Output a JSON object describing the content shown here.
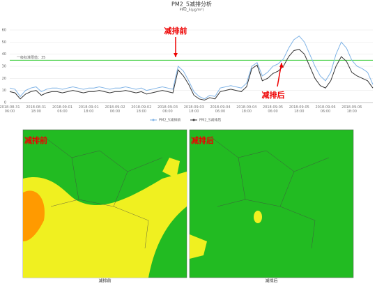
{
  "chart_data": {
    "type": "line",
    "title": "PM2_5减排分析",
    "subtitle": "PM2_5(μg/m³)",
    "categories": [
      "2018-08-31 06:00",
      null,
      null,
      null,
      null,
      "2018-08-31 18:00",
      null,
      null,
      null,
      null,
      "2018-09-01 06:00",
      null,
      null,
      null,
      null,
      "2018-09-01 18:00",
      null,
      null,
      null,
      null,
      "2018-09-02 06:00",
      null,
      null,
      null,
      null,
      "2018-09-02 18:00",
      null,
      null,
      null,
      null,
      "2018-09-03 06:00",
      null,
      null,
      null,
      null,
      "2018-09-03 18:00",
      null,
      null,
      null,
      null,
      "2018-09-04 06:00",
      null,
      null,
      null,
      null,
      "2018-09-04 18:00",
      null,
      null,
      null,
      null,
      "2018-09-05 06:00",
      null,
      null,
      null,
      null,
      "2018-09-05 18:00",
      null,
      null,
      null,
      null,
      "2018-09-06 06:00",
      null,
      null,
      null,
      null,
      "2018-09-06 18:00",
      null,
      null,
      null,
      null
    ],
    "series": [
      {
        "name": "PM2_5减排前",
        "color": "#7fb3e6",
        "values": [
          12,
          11,
          5,
          10,
          12,
          13,
          9,
          11,
          12,
          12,
          11,
          12,
          13,
          12,
          11,
          12,
          12,
          13,
          12,
          11,
          12,
          12,
          13,
          12,
          11,
          12,
          10,
          11,
          12,
          13,
          12,
          11,
          30,
          26,
          18,
          9,
          5,
          3,
          6,
          5,
          12,
          13,
          14,
          13,
          12,
          16,
          30,
          33,
          22,
          25,
          30,
          32,
          36,
          45,
          52,
          55,
          50,
          40,
          30,
          22,
          18,
          25,
          40,
          50,
          45,
          35,
          30,
          28,
          25,
          15
        ]
      },
      {
        "name": "PM2_5减排后",
        "color": "#333333",
        "values": [
          9,
          8,
          3,
          7,
          9,
          10,
          6,
          8,
          9,
          9,
          8,
          9,
          10,
          9,
          8,
          9,
          9,
          10,
          9,
          8,
          9,
          9,
          10,
          9,
          8,
          9,
          7,
          8,
          9,
          10,
          9,
          8,
          27,
          22,
          15,
          6,
          3,
          2,
          4,
          3,
          9,
          10,
          11,
          10,
          9,
          13,
          28,
          31,
          18,
          20,
          24,
          26,
          30,
          38,
          43,
          44,
          40,
          30,
          20,
          14,
          12,
          18,
          30,
          38,
          34,
          25,
          22,
          20,
          18,
          12
        ]
      }
    ],
    "ylim": [
      0,
      60
    ],
    "yticks": [
      0,
      10,
      20,
      30,
      40,
      50,
      60
    ],
    "grid": true,
    "threshold": {
      "value": 35,
      "label": "一级标准限值：35",
      "color": "#33cc33"
    },
    "annotations": [
      "减排前",
      "减排后"
    ],
    "legend": "bottom"
  },
  "maps": [
    {
      "label": "减排前",
      "caption": "减排前"
    },
    {
      "label": "减排后",
      "caption": "减排后"
    }
  ]
}
